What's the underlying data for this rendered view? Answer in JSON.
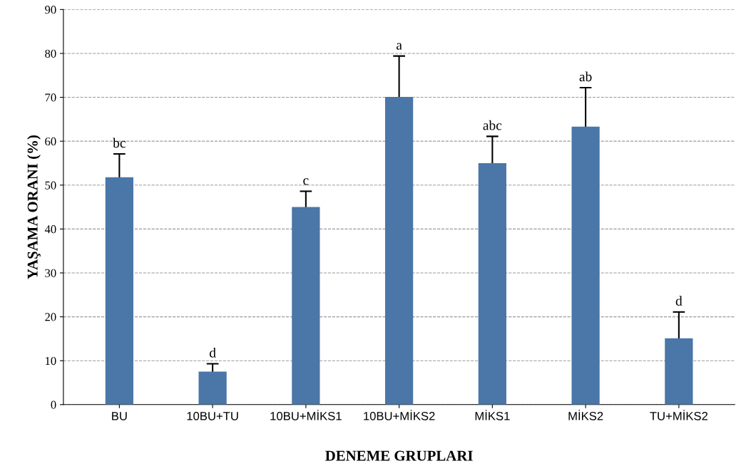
{
  "chart_data": {
    "type": "bar",
    "xlabel": "DENEME GRUPLARI",
    "ylabel": "YAŞAMA ORANI (%)",
    "categories": [
      "BU",
      "10BU+TU",
      "10BU+MİKS1",
      "10BU+MİKS2",
      "MİKS1",
      "MİKS2",
      "TU+MİKS2"
    ],
    "values": [
      51.8,
      7.5,
      45.0,
      70.1,
      55.0,
      63.3,
      15.1
    ],
    "errors": [
      5.3,
      1.8,
      3.6,
      9.3,
      6.1,
      8.9,
      6.0
    ],
    "color": "#4a76a8",
    "ylim": [
      0,
      90
    ],
    "yticks": [
      0,
      10,
      20,
      30,
      40,
      50,
      60,
      70,
      80,
      90
    ],
    "grid": "y",
    "annotations": [
      "bc",
      "d",
      "c",
      "a",
      "abc",
      "ab",
      "d"
    ]
  }
}
